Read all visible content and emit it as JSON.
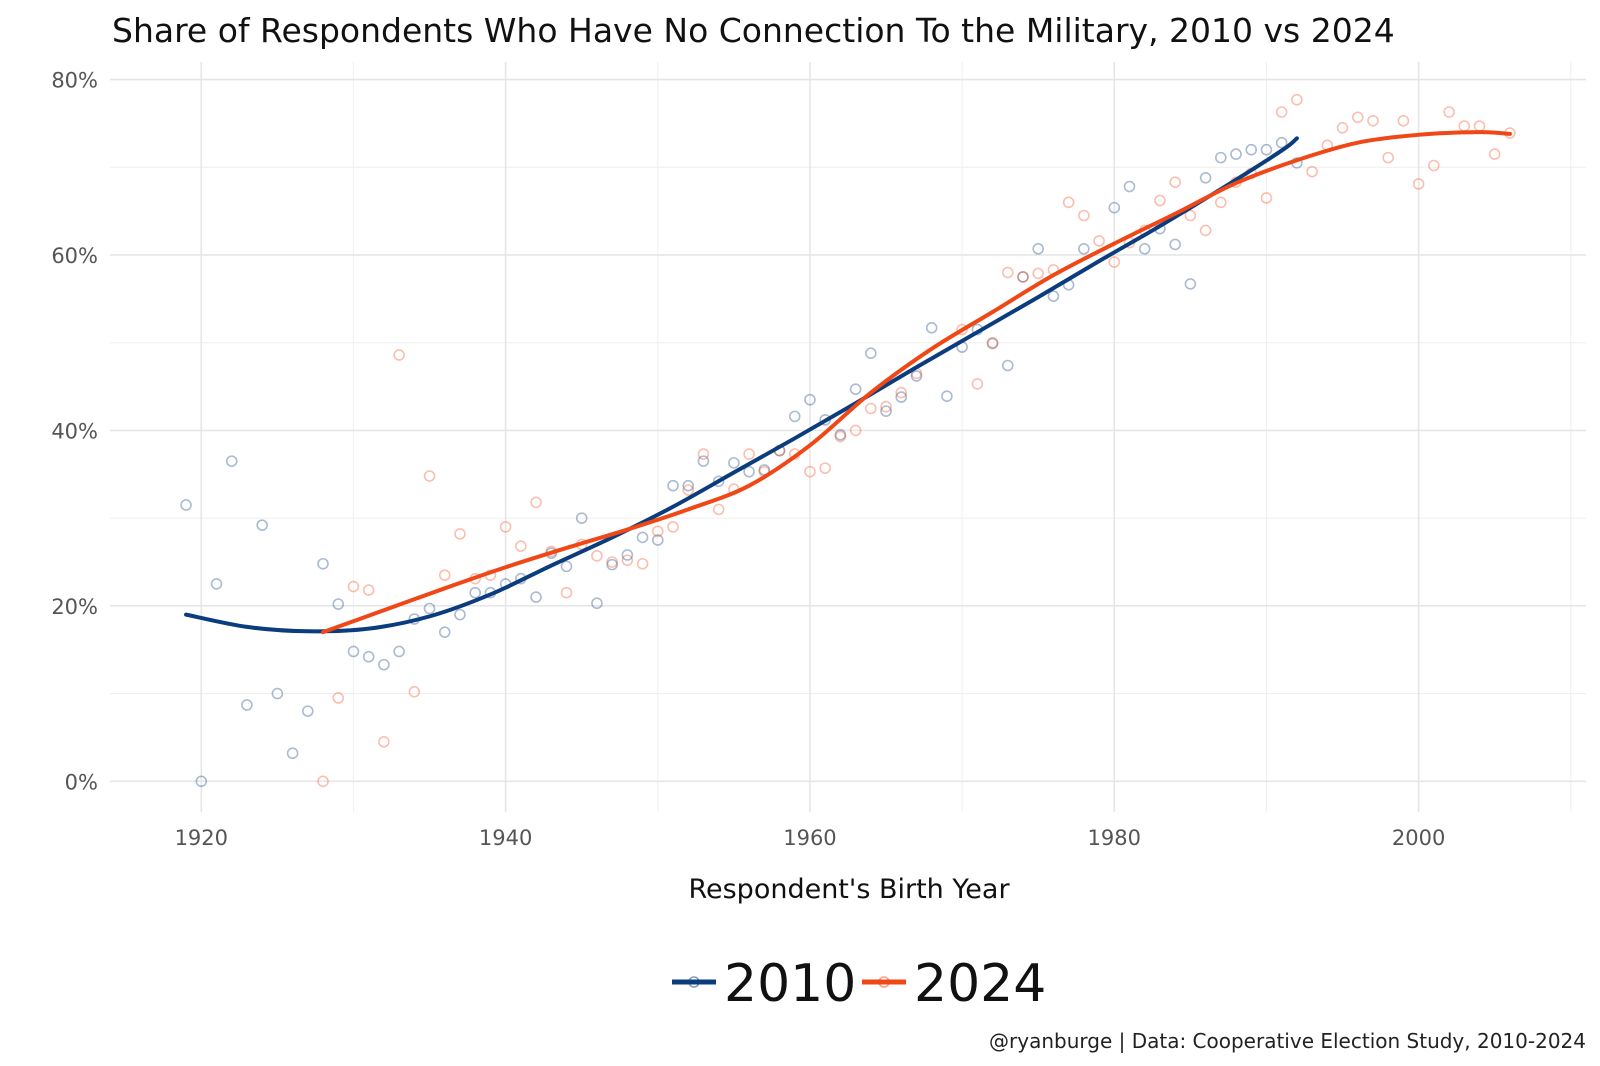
{
  "chart_data": {
    "type": "scatter",
    "title": "Share of Respondents Who Have No Connection To the Military, 2010 vs 2024",
    "xlabel": "Respondent's Birth Year",
    "ylabel": "",
    "xlim": [
      1914,
      2011
    ],
    "ylim": [
      -3.5,
      82
    ],
    "x_ticks": [
      1920,
      1940,
      1960,
      1980,
      2000
    ],
    "x_tick_labels": [
      "1920",
      "1940",
      "1960",
      "1980",
      "2000"
    ],
    "y_ticks": [
      0,
      20,
      40,
      60,
      80
    ],
    "y_tick_labels": [
      "0%",
      "20%",
      "40%",
      "60%",
      "80%"
    ],
    "grid": true,
    "legend_position": "bottom",
    "caption": "@ryanburge | Data: Cooperative Election Study, 2010-2024",
    "series": [
      {
        "name": "2010",
        "color": "#0b3d7e",
        "points": [
          [
            1919,
            31.5
          ],
          [
            1920,
            0
          ],
          [
            1921,
            22.5
          ],
          [
            1922,
            36.5
          ],
          [
            1923,
            8.7
          ],
          [
            1924,
            29.2
          ],
          [
            1925,
            10
          ],
          [
            1926,
            3.2
          ],
          [
            1927,
            8
          ],
          [
            1928,
            24.8
          ],
          [
            1929,
            20.2
          ],
          [
            1930,
            14.8
          ],
          [
            1931,
            14.2
          ],
          [
            1932,
            13.3
          ],
          [
            1933,
            14.8
          ],
          [
            1934,
            18.5
          ],
          [
            1935,
            19.7
          ],
          [
            1936,
            17
          ],
          [
            1937,
            19
          ],
          [
            1938,
            21.5
          ],
          [
            1939,
            21.5
          ],
          [
            1940,
            22.5
          ],
          [
            1941,
            23.1
          ],
          [
            1942,
            21
          ],
          [
            1943,
            26
          ],
          [
            1944,
            24.5
          ],
          [
            1945,
            30
          ],
          [
            1946,
            20.3
          ],
          [
            1947,
            24.7
          ],
          [
            1948,
            25.8
          ],
          [
            1949,
            27.8
          ],
          [
            1950,
            27.5
          ],
          [
            1951,
            33.7
          ],
          [
            1952,
            33.7
          ],
          [
            1953,
            36.5
          ],
          [
            1954,
            34.2
          ],
          [
            1955,
            36.3
          ],
          [
            1956,
            35.3
          ],
          [
            1957,
            35.5
          ],
          [
            1958,
            37.7
          ],
          [
            1959,
            41.6
          ],
          [
            1960,
            43.5
          ],
          [
            1961,
            41.2
          ],
          [
            1962,
            39.5
          ],
          [
            1963,
            44.7
          ],
          [
            1964,
            48.8
          ],
          [
            1965,
            42.2
          ],
          [
            1966,
            43.8
          ],
          [
            1967,
            46.2
          ],
          [
            1968,
            51.7
          ],
          [
            1969,
            43.9
          ],
          [
            1970,
            49.5
          ],
          [
            1971,
            51.5
          ],
          [
            1972,
            49.9
          ],
          [
            1973,
            47.4
          ],
          [
            1974,
            57.5
          ],
          [
            1975,
            60.7
          ],
          [
            1976,
            55.3
          ],
          [
            1977,
            56.6
          ],
          [
            1978,
            60.7
          ],
          [
            1980,
            65.4
          ],
          [
            1981,
            67.8
          ],
          [
            1982,
            60.7
          ],
          [
            1983,
            63
          ],
          [
            1984,
            61.2
          ],
          [
            1985,
            56.7
          ],
          [
            1986,
            68.8
          ],
          [
            1987,
            71.1
          ],
          [
            1988,
            71.5
          ],
          [
            1989,
            72
          ],
          [
            1990,
            72
          ],
          [
            1991,
            72.8
          ],
          [
            1992,
            70.5
          ]
        ],
        "trend": [
          [
            1919,
            19
          ],
          [
            1923,
            17.6
          ],
          [
            1927,
            17.1
          ],
          [
            1931,
            17.4
          ],
          [
            1935,
            18.8
          ],
          [
            1939,
            21.3
          ],
          [
            1943,
            24.6
          ],
          [
            1947,
            27.8
          ],
          [
            1951,
            31.3
          ],
          [
            1955,
            35.2
          ],
          [
            1959,
            39.1
          ],
          [
            1963,
            43.1
          ],
          [
            1967,
            47.2
          ],
          [
            1971,
            51.2
          ],
          [
            1975,
            55.2
          ],
          [
            1979,
            59.3
          ],
          [
            1983,
            63.3
          ],
          [
            1987,
            67.5
          ],
          [
            1991,
            71.9
          ],
          [
            1992,
            73.3
          ]
        ]
      },
      {
        "name": "2024",
        "color": "#f04716",
        "points": [
          [
            1928,
            0
          ],
          [
            1929,
            9.5
          ],
          [
            1930,
            22.2
          ],
          [
            1931,
            21.8
          ],
          [
            1932,
            4.5
          ],
          [
            1933,
            48.6
          ],
          [
            1934,
            10.2
          ],
          [
            1935,
            34.8
          ],
          [
            1936,
            23.5
          ],
          [
            1937,
            28.2
          ],
          [
            1938,
            23.1
          ],
          [
            1939,
            23.5
          ],
          [
            1940,
            29
          ],
          [
            1941,
            26.8
          ],
          [
            1942,
            31.8
          ],
          [
            1943,
            26.2
          ],
          [
            1944,
            21.5
          ],
          [
            1945,
            27
          ],
          [
            1946,
            25.7
          ],
          [
            1947,
            25
          ],
          [
            1948,
            25.2
          ],
          [
            1949,
            24.8
          ],
          [
            1950,
            28.5
          ],
          [
            1951,
            29
          ],
          [
            1952,
            33.2
          ],
          [
            1953,
            37.3
          ],
          [
            1954,
            31
          ],
          [
            1955,
            33.3
          ],
          [
            1956,
            37.3
          ],
          [
            1957,
            35.3
          ],
          [
            1958,
            37.7
          ],
          [
            1959,
            37.3
          ],
          [
            1960,
            35.3
          ],
          [
            1961,
            35.7
          ],
          [
            1962,
            39.3
          ],
          [
            1963,
            40
          ],
          [
            1964,
            42.5
          ],
          [
            1965,
            42.7
          ],
          [
            1966,
            44.3
          ],
          [
            1967,
            46.5
          ],
          [
            1970,
            51.5
          ],
          [
            1971,
            45.3
          ],
          [
            1972,
            50
          ],
          [
            1973,
            58
          ],
          [
            1974,
            57.5
          ],
          [
            1975,
            57.9
          ],
          [
            1976,
            58.3
          ],
          [
            1977,
            66
          ],
          [
            1978,
            64.5
          ],
          [
            1979,
            61.6
          ],
          [
            1980,
            59.2
          ],
          [
            1981,
            61.4
          ],
          [
            1982,
            62.8
          ],
          [
            1983,
            66.2
          ],
          [
            1984,
            68.3
          ],
          [
            1985,
            64.5
          ],
          [
            1986,
            62.8
          ],
          [
            1987,
            66
          ],
          [
            1988,
            68.3
          ],
          [
            1989,
            69.3
          ],
          [
            1990,
            66.5
          ],
          [
            1991,
            76.3
          ],
          [
            1992,
            77.7
          ],
          [
            1993,
            69.5
          ],
          [
            1994,
            72.5
          ],
          [
            1995,
            74.5
          ],
          [
            1996,
            75.7
          ],
          [
            1997,
            75.3
          ],
          [
            1998,
            71.1
          ],
          [
            1999,
            75.3
          ],
          [
            2000,
            68.1
          ],
          [
            2001,
            70.2
          ],
          [
            2002,
            76.3
          ],
          [
            2003,
            74.7
          ],
          [
            2004,
            74.7
          ],
          [
            2005,
            71.5
          ],
          [
            2006,
            73.9
          ]
        ],
        "trend": [
          [
            1928,
            17
          ],
          [
            1932,
            19.5
          ],
          [
            1936,
            22
          ],
          [
            1940,
            24.4
          ],
          [
            1944,
            26.6
          ],
          [
            1948,
            28.7
          ],
          [
            1952,
            31
          ],
          [
            1956,
            33.7
          ],
          [
            1960,
            38.3
          ],
          [
            1964,
            44.3
          ],
          [
            1968,
            49.3
          ],
          [
            1972,
            53.5
          ],
          [
            1976,
            57.7
          ],
          [
            1980,
            61.3
          ],
          [
            1984,
            64.7
          ],
          [
            1988,
            68.2
          ],
          [
            1992,
            70.8
          ],
          [
            1996,
            72.8
          ],
          [
            2000,
            73.7
          ],
          [
            2004,
            74
          ],
          [
            2006,
            73.8
          ]
        ]
      }
    ]
  }
}
